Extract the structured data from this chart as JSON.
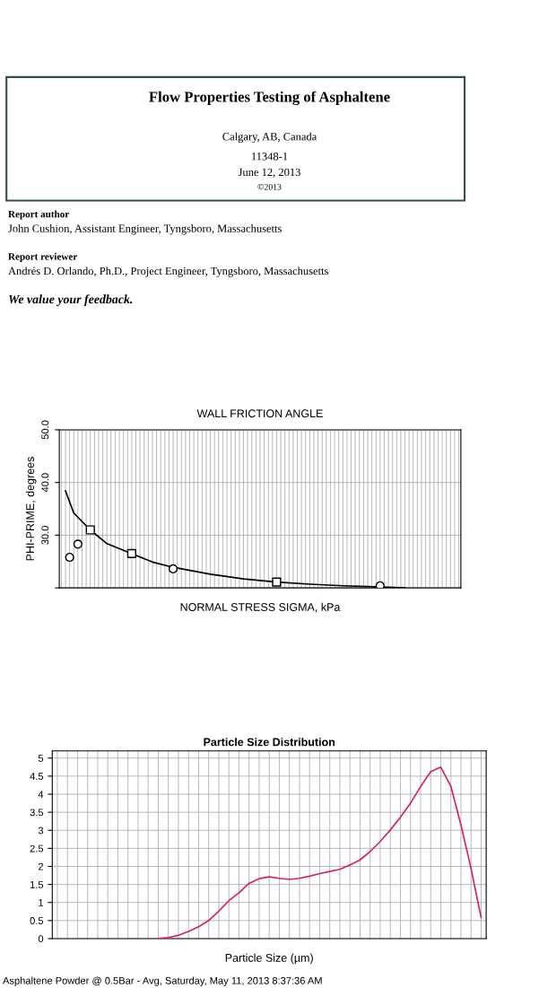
{
  "chart_data": [
    {
      "type": "scatter",
      "title": "WALL FRICTION ANGLE",
      "xlabel": "NORMAL STRESS SIGMA, kPa",
      "ylabel": "PHI-PRIME, degrees",
      "annotations": [
        "Flow Properties Testing of Asphaltene",
        "Calgary, AB, Canada",
        "11348-1",
        "June 12, 2013",
        "©2013",
        "Report author",
        "John Cushion, Assistant Engineer, Tyngsboro, Massachusetts",
        "Report reviewer",
        "Andrés D. Orlando, Ph.D., Project Engineer, Tyngsboro, Massachusetts",
        "We value your feedback."
      ],
      "categories": [
        null,
        null,
        null,
        null,
        null,
        null,
        null,
        null,
        null,
        null,
        null,
        null,
        null,
        null,
        null,
        null,
        null,
        null,
        null,
        null,
        null,
        null,
        null,
        null,
        null,
        null,
        null,
        null,
        null,
        null,
        null,
        null,
        null,
        null,
        null,
        null,
        null,
        null,
        null,
        null,
        null,
        null,
        null,
        null,
        null,
        null,
        null,
        null,
        null,
        null,
        null,
        null,
        null,
        null,
        null,
        null,
        null,
        null,
        null,
        null,
        null,
        null,
        null,
        null,
        null,
        null,
        null,
        null,
        null,
        null,
        null,
        null,
        null,
        null,
        null,
        null,
        null,
        null,
        null,
        null,
        null,
        null,
        null,
        null,
        null,
        null,
        null,
        null,
        null,
        null,
        null,
        null,
        null,
        null,
        null,
        null,
        null
      ],
      "series": [
        {
          "type": "line",
          "marker": "none",
          "color": "#000000",
          "values": [
            null,
            38.4,
            null,
            34.2,
            null,
            null,
            null,
            31.0,
            null,
            null,
            null,
            28.4,
            null,
            null,
            null,
            null,
            null,
            26.5,
            null,
            null,
            null,
            null,
            24.9,
            null,
            null,
            null,
            null,
            23.9,
            null,
            null,
            null,
            null,
            null,
            null,
            null,
            null,
            22.6,
            null,
            null,
            null,
            null,
            null,
            null,
            null,
            21.7,
            null,
            null,
            null,
            null,
            null,
            null,
            null,
            21.1,
            null,
            null,
            null,
            null,
            null,
            null,
            null,
            20.7,
            null,
            null,
            null,
            null,
            null,
            null,
            null,
            20.4,
            null,
            null,
            null,
            null,
            null,
            null,
            null,
            20.2,
            null,
            null,
            null,
            null,
            null,
            null,
            20.0,
            null,
            null,
            null,
            null,
            null,
            null,
            null,
            null,
            null,
            null,
            null,
            null,
            null
          ]
        },
        {
          "type": "scatter",
          "marker": "circle",
          "color": "#000000",
          "values": [
            null,
            null,
            25.8,
            null,
            28.3,
            null,
            null,
            null,
            null,
            null,
            null,
            null,
            null,
            null,
            null,
            null,
            null,
            null,
            null,
            null,
            null,
            null,
            null,
            null,
            null,
            null,
            null,
            23.6,
            null,
            null,
            null,
            null,
            null,
            null,
            null,
            null,
            null,
            null,
            null,
            null,
            null,
            null,
            null,
            null,
            null,
            null,
            null,
            null,
            null,
            null,
            null,
            null,
            null,
            null,
            null,
            null,
            null,
            null,
            null,
            null,
            null,
            null,
            null,
            null,
            null,
            null,
            null,
            null,
            null,
            null,
            null,
            null,
            null,
            null,
            null,
            null,
            null,
            20.4,
            null,
            null,
            null,
            null,
            null,
            null,
            null,
            null,
            null,
            null,
            null,
            null,
            null,
            null,
            null,
            null,
            null,
            null,
            null
          ]
        },
        {
          "type": "scatter",
          "marker": "square",
          "color": "#000000",
          "values": [
            null,
            null,
            null,
            null,
            null,
            null,
            null,
            31.0,
            null,
            null,
            null,
            null,
            null,
            null,
            null,
            null,
            null,
            26.5,
            null,
            null,
            null,
            null,
            null,
            null,
            null,
            null,
            null,
            null,
            null,
            null,
            null,
            null,
            null,
            null,
            null,
            null,
            null,
            null,
            null,
            null,
            null,
            null,
            null,
            null,
            null,
            null,
            null,
            null,
            null,
            null,
            null,
            null,
            21.1,
            null,
            null,
            null,
            null,
            null,
            null,
            null,
            null,
            null,
            null,
            null,
            null,
            null,
            null,
            null,
            null,
            null,
            null,
            null,
            null,
            null,
            null,
            null,
            null,
            null,
            null,
            null,
            null,
            null,
            null,
            null,
            null,
            null,
            null,
            null,
            null,
            null,
            null,
            null,
            null,
            null,
            null,
            null,
            null
          ]
        }
      ],
      "ylim": [
        20,
        50
      ],
      "yticks": [
        {
          "value": 20,
          "label": null
        },
        {
          "value": 30,
          "label": "30.0"
        },
        {
          "value": 40,
          "label": "40.0"
        },
        {
          "value": 50,
          "label": "50.0"
        }
      ],
      "grid": true,
      "tick_labels": "y"
    },
    {
      "type": "line",
      "title": "Particle Size Distribution",
      "xlabel": "Particle Size (µm)",
      "annotations": [
        "Asphaltene Powder @ 0.5Bar - Avg, Saturday, May 11, 2013 8:37:36 AM"
      ],
      "categories": [
        null,
        null,
        null,
        null,
        null,
        null,
        null,
        null,
        null,
        null,
        null,
        null,
        null,
        null,
        null,
        null,
        null,
        null,
        null,
        null,
        null,
        null,
        null,
        null,
        null,
        null,
        null,
        null,
        null,
        null,
        null,
        null,
        null,
        null,
        null,
        null,
        null,
        null,
        null,
        null,
        null,
        null,
        null
      ],
      "series": [
        {
          "color": "#d6245a",
          "values": [
            null,
            null,
            null,
            null,
            null,
            null,
            null,
            null,
            null,
            null,
            0,
            0.03,
            0.09,
            0.2,
            0.33,
            0.5,
            0.76,
            1.05,
            1.27,
            1.53,
            1.66,
            1.71,
            1.67,
            1.64,
            1.67,
            1.73,
            1.8,
            1.86,
            1.92,
            2.04,
            2.18,
            2.41,
            2.69,
            3.01,
            3.36,
            3.75,
            4.21,
            4.62,
            4.75,
            4.22,
            3.15,
            1.94,
            0.58
          ]
        }
      ],
      "ylim": [
        0,
        5.2
      ],
      "yticks": [
        0,
        0.5,
        1,
        1.5,
        2,
        2.5,
        3,
        3.5,
        4,
        4.5,
        5
      ],
      "grid": true,
      "tick_labels": "y"
    }
  ]
}
